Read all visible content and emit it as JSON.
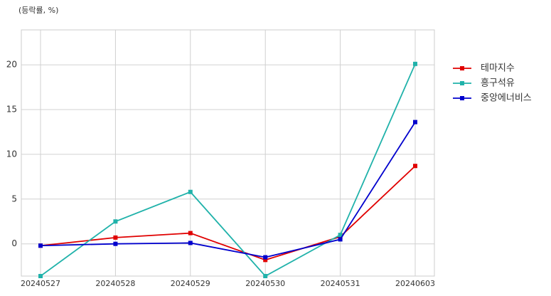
{
  "chart_data": {
    "type": "line",
    "axis_title": "(등락률, %)",
    "categories": [
      "20240527",
      "20240528",
      "20240529",
      "20240530",
      "20240531",
      "20240603"
    ],
    "series": [
      {
        "name": "테마지수",
        "color": "#e00000",
        "values": [
          -0.2,
          0.7,
          1.2,
          -1.8,
          0.8,
          8.7
        ]
      },
      {
        "name": "흥구석유",
        "color": "#20b2aa",
        "values": [
          -3.6,
          2.5,
          5.8,
          -3.6,
          1.0,
          20.1
        ]
      },
      {
        "name": "중앙에너비스",
        "color": "#0000cd",
        "values": [
          -0.2,
          0.0,
          0.1,
          -1.5,
          0.5,
          13.6
        ]
      }
    ],
    "ylim": [
      -3.6,
      23.9
    ],
    "yticks": [
      0,
      5,
      10,
      15,
      20
    ],
    "grid": true,
    "legend": "right"
  }
}
